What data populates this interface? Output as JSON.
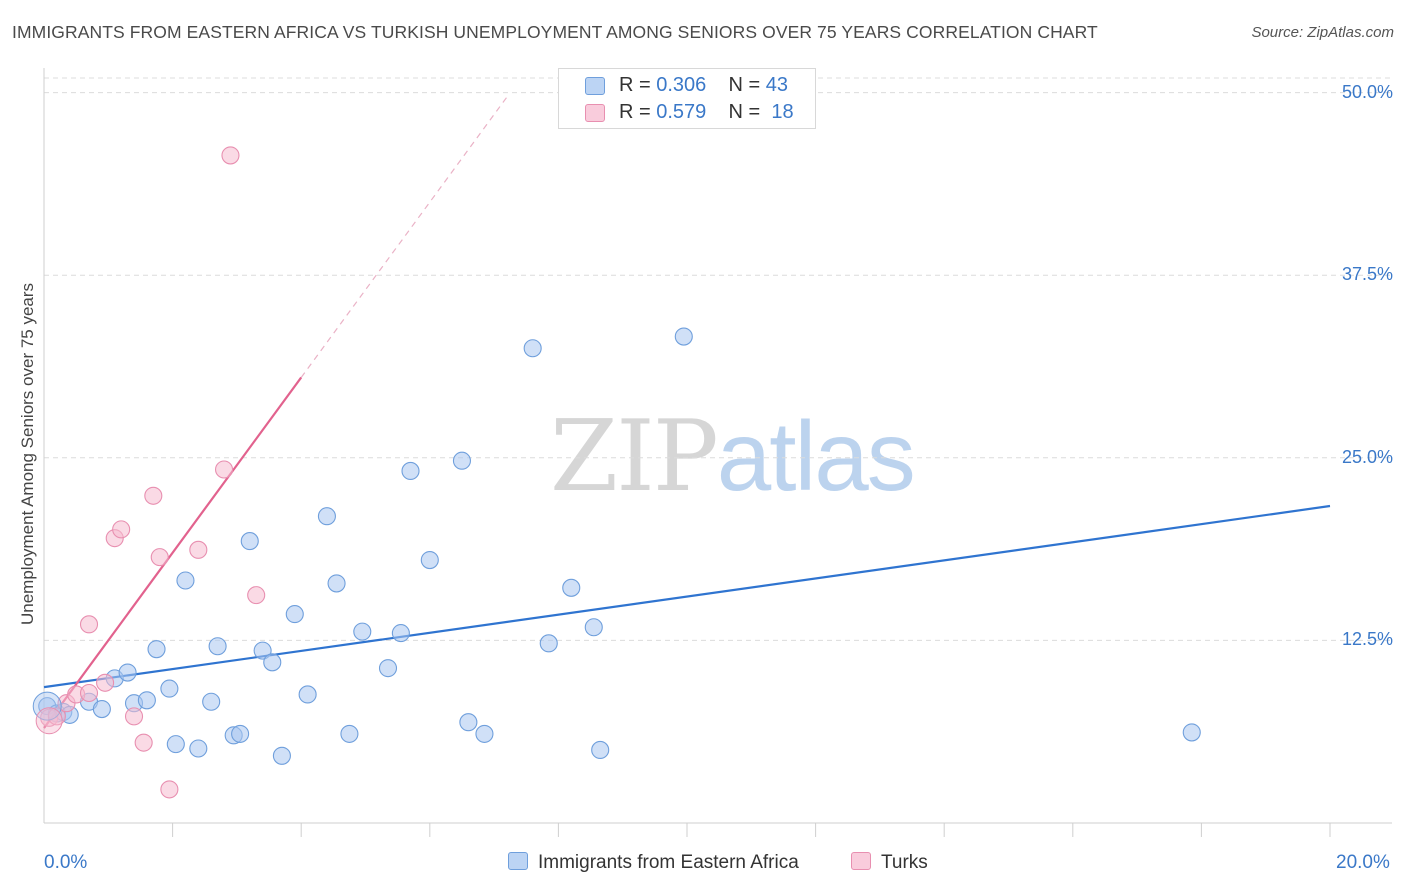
{
  "chart_data": {
    "type": "scatter",
    "title": "IMMIGRANTS FROM EASTERN AFRICA VS TURKISH UNEMPLOYMENT AMONG SENIORS OVER 75 YEARS CORRELATION CHART",
    "source": "Source: ZipAtlas.com",
    "xlabel": "",
    "ylabel": "Unemployment Among Seniors over 75 years",
    "xlim": [
      0,
      20
    ],
    "ylim": [
      0,
      51
    ],
    "x_tick_labels": [
      "0.0%",
      "20.0%"
    ],
    "y_ticks": [
      {
        "value": 50,
        "label": "50.0%"
      },
      {
        "value": 37.5,
        "label": "37.5%"
      },
      {
        "value": 25,
        "label": "25.0%"
      },
      {
        "value": 12.5,
        "label": "12.5%"
      }
    ],
    "watermark": {
      "part1": "ZIP",
      "part2": "atlas"
    },
    "legend": [
      {
        "r_label": "R =",
        "r_value": "0.306",
        "n_label": "N =",
        "n_value": "43"
      },
      {
        "r_label": "R =",
        "r_value": "0.579",
        "n_label": "N =",
        "n_value": "18"
      }
    ],
    "series": [
      {
        "name": "Immigrants from Eastern Africa",
        "color": "#a9c6f0",
        "stroke": "#6f9fdc",
        "line_color": "#2f74d0",
        "trend": {
          "x0": 0,
          "y0": 9.3,
          "x1": 20,
          "y1": 21.7
        },
        "points": [
          [
            0.05,
            8.0
          ],
          [
            0.2,
            7.5
          ],
          [
            0.3,
            7.6
          ],
          [
            0.4,
            7.4
          ],
          [
            0.7,
            8.3
          ],
          [
            0.9,
            7.8
          ],
          [
            1.1,
            9.9
          ],
          [
            1.3,
            10.3
          ],
          [
            1.4,
            8.2
          ],
          [
            1.6,
            8.4
          ],
          [
            1.75,
            11.9
          ],
          [
            1.95,
            9.2
          ],
          [
            2.05,
            5.4
          ],
          [
            2.2,
            16.6
          ],
          [
            2.4,
            5.1
          ],
          [
            2.6,
            8.3
          ],
          [
            2.7,
            12.1
          ],
          [
            2.95,
            6.0
          ],
          [
            3.05,
            6.1
          ],
          [
            3.2,
            19.3
          ],
          [
            3.4,
            11.8
          ],
          [
            3.55,
            11.0
          ],
          [
            3.7,
            4.6
          ],
          [
            3.9,
            14.3
          ],
          [
            4.1,
            8.8
          ],
          [
            4.4,
            21.0
          ],
          [
            4.55,
            16.4
          ],
          [
            4.75,
            6.1
          ],
          [
            4.95,
            13.1
          ],
          [
            5.35,
            10.6
          ],
          [
            5.55,
            13.0
          ],
          [
            5.7,
            24.1
          ],
          [
            6.0,
            18.0
          ],
          [
            6.5,
            24.8
          ],
          [
            6.6,
            6.9
          ],
          [
            6.85,
            6.1
          ],
          [
            7.6,
            32.5
          ],
          [
            7.85,
            12.3
          ],
          [
            8.2,
            16.1
          ],
          [
            8.55,
            13.4
          ],
          [
            8.65,
            5.0
          ],
          [
            9.95,
            33.3
          ],
          [
            17.85,
            6.2
          ]
        ]
      },
      {
        "name": "Turks",
        "color": "#f6bcd0",
        "stroke": "#e88fb0",
        "line_color": "#e2628e",
        "trend": {
          "x0": 0,
          "y0": 6.5,
          "x1": 4.0,
          "y1": 30.5
        },
        "trend_ext": {
          "x1": 7.2,
          "y1": 49.7
        },
        "points": [
          [
            0.08,
            7.2
          ],
          [
            0.2,
            7.3
          ],
          [
            0.35,
            8.2
          ],
          [
            0.5,
            8.8
          ],
          [
            0.7,
            8.9
          ],
          [
            0.7,
            13.6
          ],
          [
            0.95,
            9.6
          ],
          [
            1.1,
            19.5
          ],
          [
            1.2,
            20.1
          ],
          [
            1.4,
            7.3
          ],
          [
            1.55,
            5.5
          ],
          [
            1.7,
            22.4
          ],
          [
            1.8,
            18.2
          ],
          [
            1.95,
            2.3
          ],
          [
            2.4,
            18.7
          ],
          [
            2.8,
            24.2
          ],
          [
            2.9,
            45.7
          ],
          [
            3.3,
            15.6
          ]
        ]
      }
    ]
  }
}
